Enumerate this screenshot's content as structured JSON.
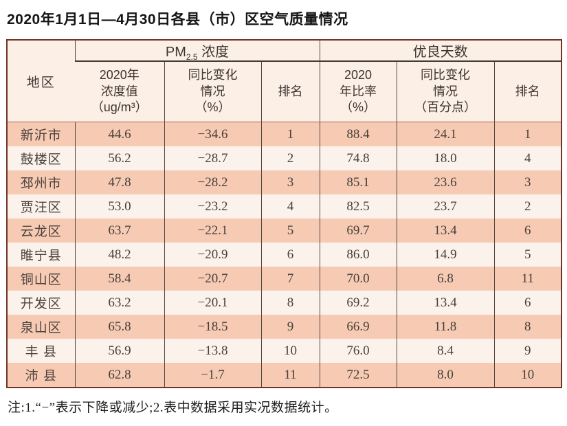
{
  "title": "2020年1月1日—4月30日各县（市）区空气质量情况",
  "note": "注:1.“−”表示下降或减少;2.表中数据采用实况数据统计。",
  "colors": {
    "row_dark": "#f7cab4",
    "row_light": "#fcf2ec",
    "header_bg": "#fcefe6",
    "outer_border": "#6e3526"
  },
  "table": {
    "region_header": "地区",
    "group_pm": {
      "main": "PM",
      "sub": "2.5",
      "rest": " 浓度"
    },
    "group_days": "优良天数",
    "subheaders": {
      "pm_value": "2020年\n浓度值\n（ug/m³）",
      "pm_change": "同比变化\n情况\n（%）",
      "pm_rank": "排名",
      "days_rate": "2020\n年比率\n（%）",
      "days_change": "同比变化\n情况\n（百分点）",
      "days_rank": "排名"
    },
    "rows": [
      [
        "新沂市",
        "44.6",
        "−34.6",
        "1",
        "88.4",
        "24.1",
        "1"
      ],
      [
        "鼓楼区",
        "56.2",
        "−28.7",
        "2",
        "74.8",
        "18.0",
        "4"
      ],
      [
        "邳州市",
        "47.8",
        "−28.2",
        "3",
        "85.1",
        "23.6",
        "3"
      ],
      [
        "贾汪区",
        "53.0",
        "−23.2",
        "4",
        "82.5",
        "23.7",
        "2"
      ],
      [
        "云龙区",
        "63.7",
        "−22.1",
        "5",
        "69.7",
        "13.4",
        "6"
      ],
      [
        "睢宁县",
        "48.2",
        "−20.9",
        "6",
        "86.0",
        "14.9",
        "5"
      ],
      [
        "铜山区",
        "58.4",
        "−20.7",
        "7",
        "70.0",
        "6.8",
        "11"
      ],
      [
        "开发区",
        "63.2",
        "−20.1",
        "8",
        "69.2",
        "13.4",
        "6"
      ],
      [
        "泉山区",
        "65.8",
        "−18.5",
        "9",
        "66.9",
        "11.8",
        "8"
      ],
      [
        "丰 县",
        "56.9",
        "−13.8",
        "10",
        "76.0",
        "8.4",
        "9"
      ],
      [
        "沛 县",
        "62.8",
        "−1.7",
        "11",
        "72.5",
        "8.0",
        "10"
      ]
    ]
  }
}
